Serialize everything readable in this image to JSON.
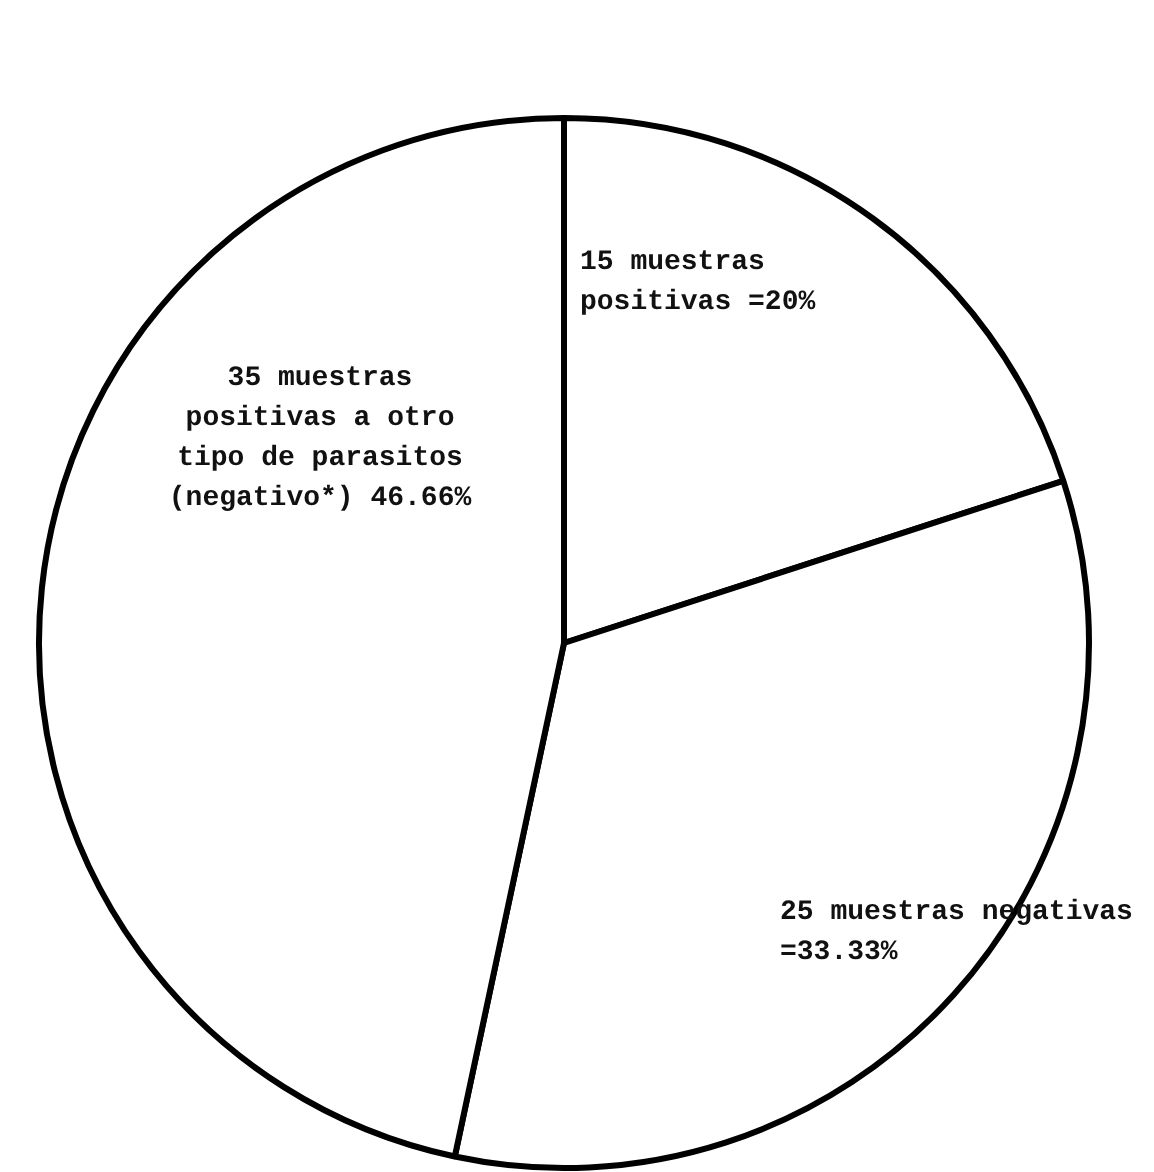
{
  "chart_data": {
    "type": "pie",
    "categories": [
      "15 muestras positivas =20%",
      "25 muestras negativas =33.33%",
      "35 muestras positivas a otro tipo de parasitos (negativo*) 46.66%"
    ],
    "values": [
      20,
      33.33,
      46.66
    ],
    "colors": [
      "#ffffff",
      "#ffffff",
      "#ffffff"
    ],
    "legend": false
  }
}
